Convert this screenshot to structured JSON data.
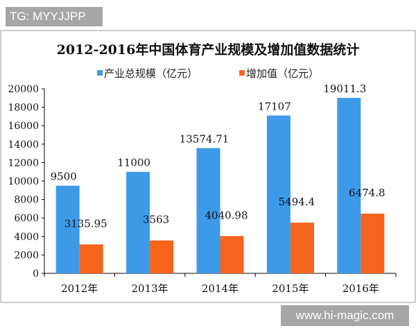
{
  "watermark_tg": "TG: MYYJJPP",
  "watermark_site": "www.hi-magic.com",
  "chart_data": {
    "type": "bar",
    "title": "2012-2016年中国体育产业规模及增加值数据统计",
    "categories": [
      "2012年",
      "2013年",
      "2014年",
      "2015年",
      "2016年"
    ],
    "series": [
      {
        "name": "产业总规模（亿元）",
        "color": "#3d9ae8",
        "values": [
          9500,
          11000,
          13574.71,
          17107,
          19011.3
        ],
        "labels": [
          "9500",
          "11000",
          "13574.71",
          "17107",
          "19011.3"
        ]
      },
      {
        "name": "增加值（亿元）",
        "color": "#f5651e",
        "values": [
          3135.95,
          3563,
          4040.98,
          5494.4,
          6474.8
        ],
        "labels": [
          "3135.95",
          "3563",
          "4040.98",
          "5494.4",
          "6474.8"
        ]
      }
    ],
    "yticks": [
      0,
      2000,
      4000,
      6000,
      8000,
      10000,
      12000,
      14000,
      16000,
      18000,
      20000
    ],
    "ylim": [
      0,
      20000
    ],
    "grid": false,
    "legend": "top"
  }
}
